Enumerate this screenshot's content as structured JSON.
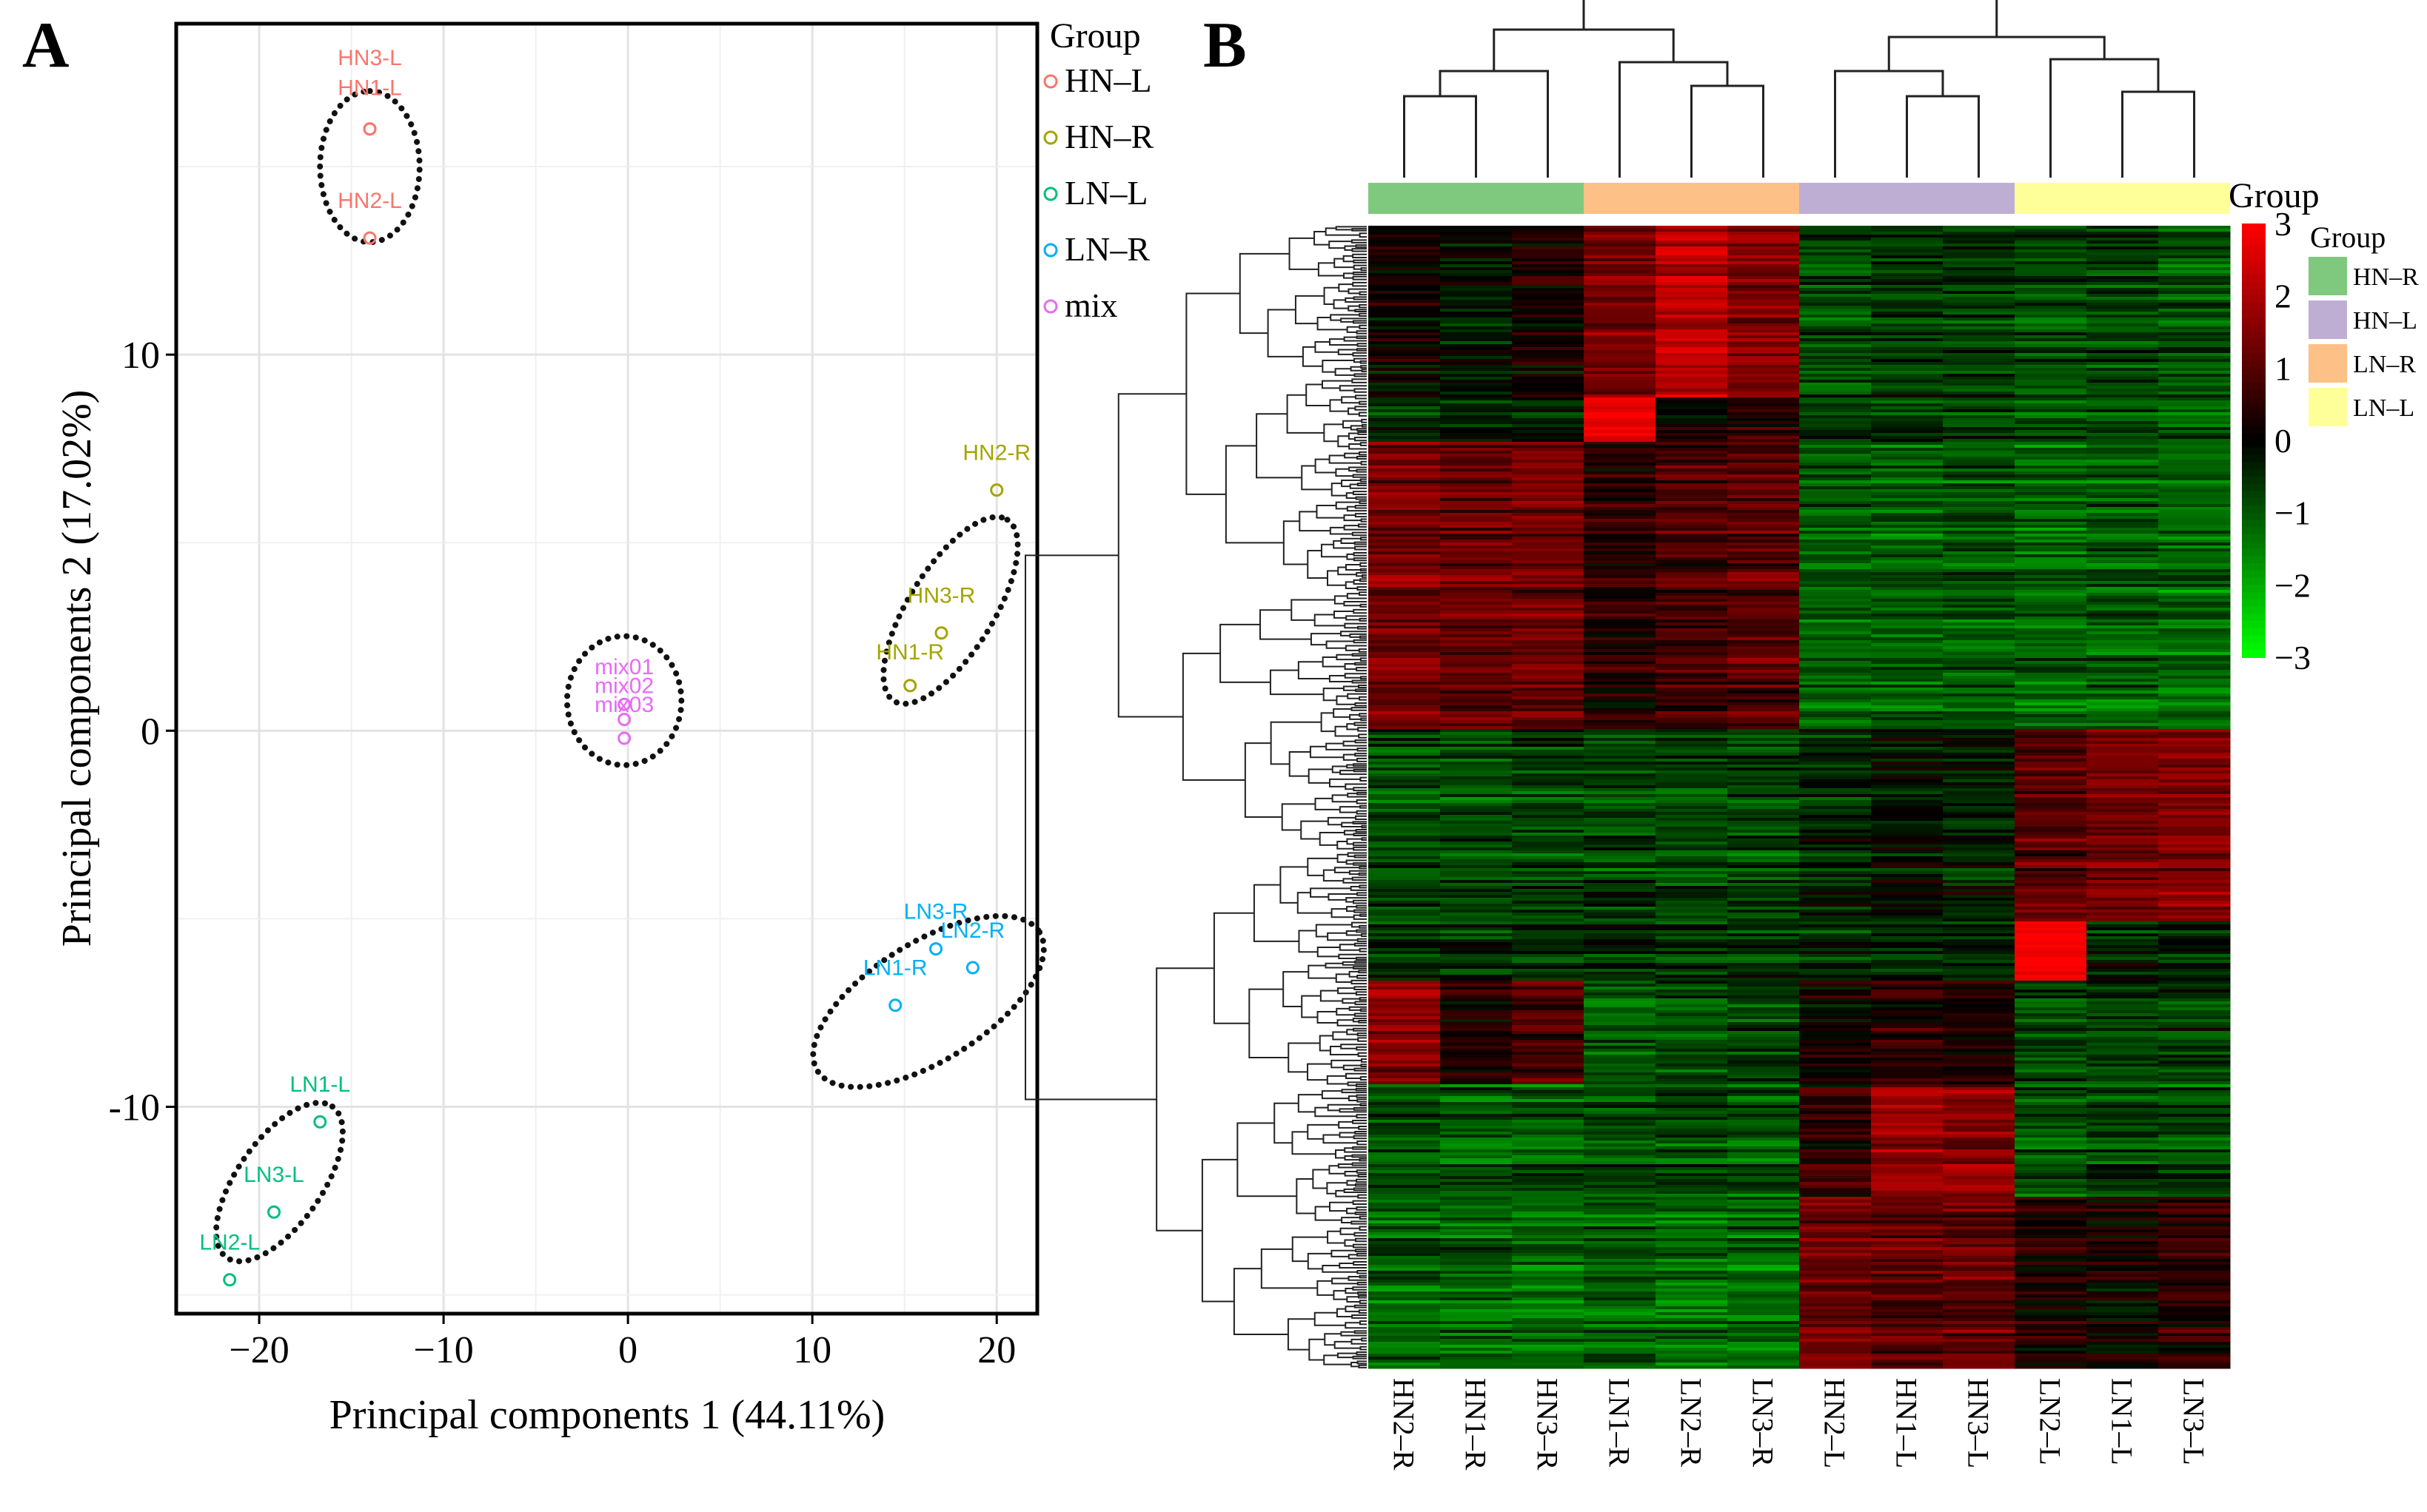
{
  "panels": {
    "a_label": "A",
    "b_label": "B"
  },
  "chart_data": [
    {
      "type": "scatter",
      "panel": "A",
      "xlabel": "Principal components 1 (44.11%)",
      "ylabel": "Principal components 2 (17.02%)",
      "xlim": [
        -24.5,
        22.2
      ],
      "ylim": [
        -15.5,
        18.8
      ],
      "xticks": [
        -20,
        -10,
        0,
        10,
        20
      ],
      "xtick_labels": [
        "−20",
        "−10",
        "0",
        "10",
        "20"
      ],
      "yticks": [
        -10,
        0,
        10
      ],
      "ytick_labels": [
        "-10",
        "0",
        "10"
      ],
      "grid": true,
      "legend": {
        "title": "Group",
        "position": "right",
        "items": [
          {
            "key": "HN-L",
            "label": "HN–L",
            "color": "#F8766D"
          },
          {
            "key": "HN-R",
            "label": "HN–R",
            "color": "#A3A500"
          },
          {
            "key": "LN-L",
            "label": "LN–L",
            "color": "#00BF7D"
          },
          {
            "key": "LN-R",
            "label": "LN–R",
            "color": "#00B0F6"
          },
          {
            "key": "mix",
            "label": "mix",
            "color": "#E76BF3"
          }
        ]
      },
      "points": [
        {
          "label": "HN3-L",
          "group": "HN-L",
          "x": -14.0,
          "y": 16.0,
          "lx": -14.0,
          "ly": 17.7
        },
        {
          "label": "HN1-L",
          "group": "HN-L",
          "x": -14.0,
          "y": 16.0,
          "lx": -14.0,
          "ly": 16.9
        },
        {
          "label": "HN2-L",
          "group": "HN-L",
          "x": -14.0,
          "y": 13.1,
          "lx": -14.0,
          "ly": 13.9
        },
        {
          "label": "HN2-R",
          "group": "HN-R",
          "x": 20.0,
          "y": 6.4,
          "lx": 20.0,
          "ly": 7.2
        },
        {
          "label": "HN3-R",
          "group": "HN-R",
          "x": 17.0,
          "y": 2.6,
          "lx": 17.0,
          "ly": 3.4
        },
        {
          "label": "HN1-R",
          "group": "HN-R",
          "x": 15.3,
          "y": 1.2,
          "lx": 15.3,
          "ly": 1.9
        },
        {
          "label": "mix01",
          "group": "mix",
          "x": -0.2,
          "y": 0.7,
          "lx": -0.2,
          "ly": 1.5
        },
        {
          "label": "mix02",
          "group": "mix",
          "x": -0.2,
          "y": 0.3,
          "lx": -0.2,
          "ly": 1.0
        },
        {
          "label": "mix03",
          "group": "mix",
          "x": -0.2,
          "y": -0.2,
          "lx": -0.2,
          "ly": 0.5
        },
        {
          "label": "LN3-R",
          "group": "LN-R",
          "x": 16.7,
          "y": -5.8,
          "lx": 16.7,
          "ly": -5.0
        },
        {
          "label": "LN2-R",
          "group": "LN-R",
          "x": 18.7,
          "y": -6.3,
          "lx": 18.7,
          "ly": -5.5
        },
        {
          "label": "LN1-R",
          "group": "LN-R",
          "x": 14.5,
          "y": -7.3,
          "lx": 14.5,
          "ly": -6.5
        },
        {
          "label": "LN1-L",
          "group": "LN-L",
          "x": -16.7,
          "y": -10.4,
          "lx": -16.7,
          "ly": -9.6
        },
        {
          "label": "LN3-L",
          "group": "LN-L",
          "x": -19.2,
          "y": -12.8,
          "lx": -19.2,
          "ly": -12.0
        },
        {
          "label": "LN2-L",
          "group": "LN-L",
          "x": -21.6,
          "y": -14.6,
          "lx": -21.6,
          "ly": -13.8
        }
      ],
      "ellipses": [
        {
          "group": "HN-L",
          "cx": -14.0,
          "cy": 15.0,
          "rx": 4.1,
          "ry": 2.7,
          "angle": 90
        },
        {
          "group": "HN-R",
          "cx": 17.5,
          "cy": 3.2,
          "rx": 5.8,
          "ry": 2.3,
          "angle": 58
        },
        {
          "group": "mix",
          "cx": -0.2,
          "cy": 0.8,
          "rx": 3.1,
          "ry": 3.5,
          "angle": 0
        },
        {
          "group": "LN-R",
          "cx": 16.3,
          "cy": -7.2,
          "rx": 7.1,
          "ry": 3.2,
          "angle": 32
        },
        {
          "group": "LN-L",
          "cx": -18.9,
          "cy": -12.0,
          "rx": 5.0,
          "ry": 2.3,
          "angle": 55
        }
      ]
    },
    {
      "type": "heatmap",
      "panel": "B",
      "columns": [
        "HN2–R",
        "HN1–R",
        "HN3–R",
        "LN1–R",
        "LN2–R",
        "LN3–R",
        "HN2–L",
        "HN1–L",
        "HN3–L",
        "LN2–L",
        "LN1–L",
        "LN3–L"
      ],
      "column_groups": [
        "HN-R",
        "HN-R",
        "HN-R",
        "LN-R",
        "LN-R",
        "LN-R",
        "HN-L",
        "HN-L",
        "HN-L",
        "LN-L",
        "LN-L",
        "LN-L"
      ],
      "annotation_title": "Group",
      "legend_title": "Group",
      "group_legend": [
        {
          "key": "HN-R",
          "label": "HN–R",
          "color": "#7FC97F"
        },
        {
          "key": "HN-L",
          "label": "HN–L",
          "color": "#BEAED4"
        },
        {
          "key": "LN-R",
          "label": "LN–R",
          "color": "#FDC086"
        },
        {
          "key": "LN-L",
          "label": "LN–L",
          "color": "#FFFF99"
        }
      ],
      "color_scale": {
        "min": -3,
        "max": 3,
        "ticks": [
          3,
          2,
          1,
          0,
          -1,
          -2,
          -3
        ],
        "tick_labels": [
          "3",
          "2",
          "1",
          "0",
          "−1",
          "−2",
          "−3"
        ],
        "low_color": "#00FF00",
        "mid_color": "#000000",
        "high_color": "#FF0000"
      },
      "value_blocks": [
        {
          "rows": [
            0.0,
            0.15
          ],
          "values": [
            0.1,
            -0.3,
            0.2,
            1.3,
            2.1,
            1.5,
            -0.9,
            -0.6,
            -0.7,
            -0.9,
            -0.8,
            -1.0
          ]
        },
        {
          "rows": [
            0.15,
            0.19
          ],
          "values": [
            -0.4,
            -0.2,
            -0.3,
            2.9,
            0.2,
            0.6,
            -0.6,
            -0.5,
            -0.6,
            -0.8,
            -0.7,
            -0.9
          ]
        },
        {
          "rows": [
            0.19,
            0.44
          ],
          "values": [
            1.4,
            1.2,
            1.3,
            0.4,
            0.8,
            1.0,
            -1.1,
            -1.1,
            -1.0,
            -1.2,
            -1.1,
            -1.2
          ]
        },
        {
          "rows": [
            0.44,
            0.61
          ],
          "values": [
            -0.9,
            -0.9,
            -0.8,
            -0.8,
            -0.9,
            -0.8,
            -0.4,
            -0.2,
            -0.4,
            1.0,
            1.3,
            1.4
          ]
        },
        {
          "rows": [
            0.61,
            0.66
          ],
          "values": [
            -0.6,
            -0.6,
            -0.6,
            -0.6,
            -0.6,
            -0.6,
            -0.5,
            -0.5,
            -0.5,
            3.0,
            -0.4,
            -0.4
          ]
        },
        {
          "rows": [
            0.66,
            0.75
          ],
          "values": [
            1.6,
            0.3,
            0.9,
            -1.0,
            -0.8,
            -0.7,
            0.2,
            0.5,
            0.4,
            -0.8,
            -0.7,
            -0.6
          ]
        },
        {
          "rows": [
            0.75,
            0.85
          ],
          "values": [
            -1.0,
            -1.1,
            -1.1,
            -0.9,
            -0.9,
            -1.0,
            0.5,
            1.7,
            1.6,
            -1.0,
            -0.8,
            -0.9
          ]
        },
        {
          "rows": [
            0.85,
            1.0
          ],
          "values": [
            -1.1,
            -1.1,
            -1.2,
            -1.1,
            -1.2,
            -1.2,
            1.3,
            1.1,
            1.2,
            0.4,
            0.2,
            0.6
          ]
        }
      ],
      "column_dendrogram": [
        {
          "a": 0,
          "b": 1,
          "h": 0.55
        },
        {
          "a": 2,
          "b": 12,
          "h": 0.72
        },
        {
          "a": 4,
          "b": 5,
          "h": 0.62
        },
        {
          "a": 3,
          "b": 14,
          "h": 0.78
        },
        {
          "a": 13,
          "b": 15,
          "h": 1.0
        },
        {
          "a": 7,
          "b": 8,
          "h": 0.55
        },
        {
          "a": 6,
          "b": 17,
          "h": 0.72
        },
        {
          "a": 10,
          "b": 11,
          "h": 0.58
        },
        {
          "a": 9,
          "b": 19,
          "h": 0.8
        },
        {
          "a": 18,
          "b": 20,
          "h": 0.95
        },
        {
          "a": 16,
          "b": 21,
          "h": 1.38
        }
      ]
    }
  ]
}
